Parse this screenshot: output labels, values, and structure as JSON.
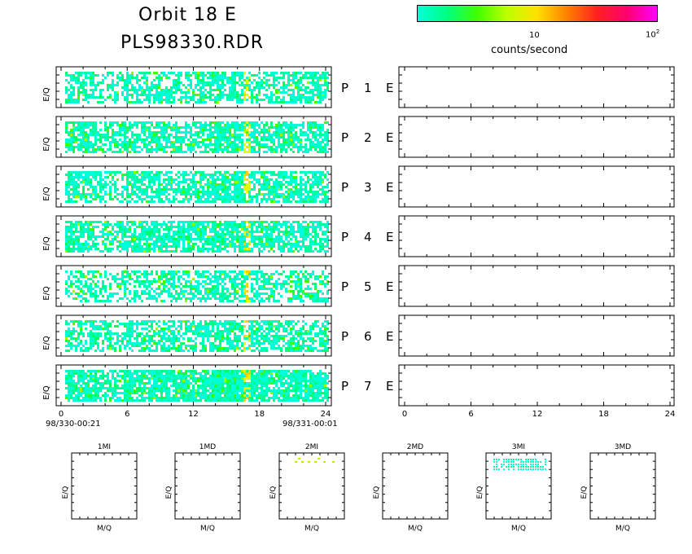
{
  "header": {
    "title_line1": "Orbit 18 E",
    "title_line2": "PLS98330.RDR",
    "colorbar_label": "counts/second",
    "colorbar_tick_10": "10",
    "colorbar_tick_100_base": "10",
    "colorbar_tick_100_exp": "2",
    "colorbar_colors": [
      "#00ffd8",
      "#00ff80",
      "#40ff00",
      "#c0ff00",
      "#ffe000",
      "#ff8000",
      "#ff2020",
      "#ff0070",
      "#ff00ff"
    ]
  },
  "chart_data": {
    "type": "heatmap",
    "scale": "log",
    "colorbar_ticks": [
      "10",
      "10^2"
    ],
    "colorbar_label": "counts/second",
    "x_ticks": [
      "0",
      "6",
      "12",
      "18",
      "24"
    ],
    "xlim": [
      0,
      24
    ],
    "x_units": "hours",
    "left_start_label": "98/330-00:21",
    "left_end_label": "98/331-00:01",
    "ylabel": "E/Q",
    "panels": [
      {
        "row_label": "P",
        "index": "1",
        "species": "E"
      },
      {
        "row_label": "P",
        "index": "2",
        "species": "E"
      },
      {
        "row_label": "P",
        "index": "3",
        "species": "E"
      },
      {
        "row_label": "P",
        "index": "4",
        "species": "E"
      },
      {
        "row_label": "P",
        "index": "5",
        "species": "E"
      },
      {
        "row_label": "P",
        "index": "6",
        "species": "E"
      },
      {
        "row_label": "P",
        "index": "7",
        "species": "E"
      }
    ],
    "right_panels_empty": true,
    "small_panels": {
      "xlabel": "M/Q",
      "ylabel": "E/Q",
      "titles": [
        "1MI",
        "1MD",
        "2MI",
        "2MD",
        "3MI",
        "3MD"
      ]
    }
  }
}
